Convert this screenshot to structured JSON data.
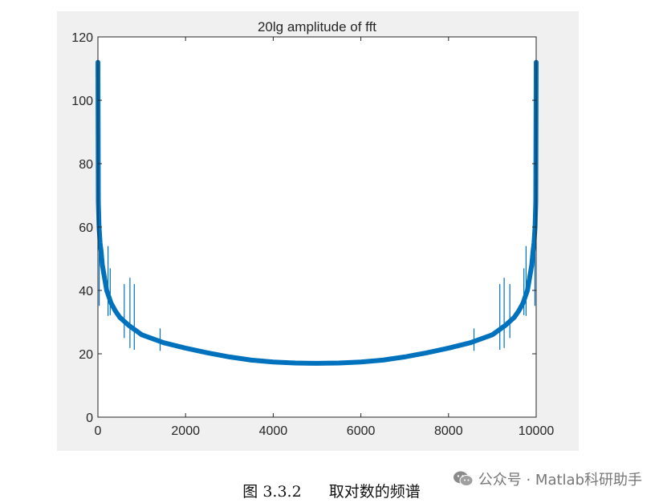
{
  "chart_data": {
    "type": "line",
    "title": "20lg amplitude of fft",
    "xlabel": "",
    "ylabel": "",
    "xlim": [
      0,
      10000
    ],
    "ylim": [
      0,
      120
    ],
    "x_ticks": [
      0,
      2000,
      4000,
      6000,
      8000,
      10000
    ],
    "y_ticks": [
      0,
      20,
      40,
      60,
      80,
      100,
      120
    ],
    "grid": false,
    "series": [
      {
        "color": "#0072bd",
        "x": [
          0,
          10,
          25,
          50,
          75,
          100,
          150,
          200,
          300,
          400,
          500,
          700,
          1000,
          1500,
          2000,
          2500,
          3000,
          3500,
          4000,
          4500,
          5000,
          5500,
          6000,
          6500,
          7000,
          7500,
          8000,
          8500,
          9000,
          9300,
          9500,
          9600,
          9700,
          9800,
          9850,
          9900,
          9925,
          9950,
          9975,
          9990,
          10000
        ],
        "y": [
          112,
          68,
          60,
          55,
          52,
          48,
          44,
          40,
          36,
          33.5,
          31.5,
          29,
          26,
          23.5,
          21.8,
          20.3,
          19,
          18,
          17.4,
          17.1,
          17,
          17.1,
          17.4,
          18,
          19,
          20.3,
          21.8,
          23.5,
          26,
          29,
          31.5,
          33.5,
          36,
          40,
          44,
          48,
          52,
          55,
          60,
          68,
          112
        ],
        "spikes": [
          {
            "x": 30,
            "y": 112
          },
          {
            "x": 230,
            "y": 54
          },
          {
            "x": 280,
            "y": 47
          },
          {
            "x": 600,
            "y": 42
          },
          {
            "x": 730,
            "y": 44
          },
          {
            "x": 830,
            "y": 42
          },
          {
            "x": 1420,
            "y": 28
          },
          {
            "x": 8580,
            "y": 28
          },
          {
            "x": 9170,
            "y": 42
          },
          {
            "x": 9270,
            "y": 44
          },
          {
            "x": 9400,
            "y": 42
          },
          {
            "x": 9720,
            "y": 47
          },
          {
            "x": 9770,
            "y": 54
          },
          {
            "x": 9970,
            "y": 112
          }
        ]
      }
    ]
  },
  "caption": {
    "number": "图 3.3.2",
    "text": "取对数的频谱"
  },
  "watermark": {
    "text": "公众号 · Matlab科研助手",
    "icon": "wechat-icon"
  }
}
